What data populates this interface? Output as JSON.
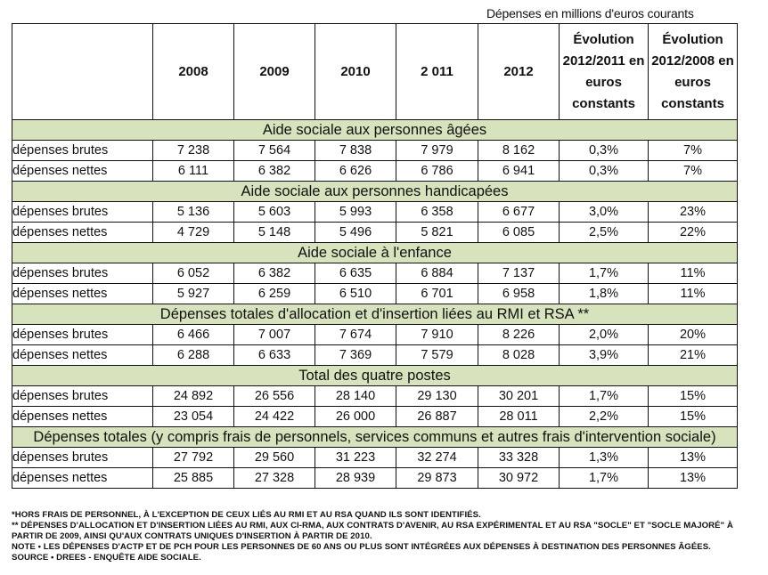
{
  "unit_note": "Dépenses en millions d'euros courants",
  "header": {
    "columns": [
      "",
      "2008",
      "2009",
      "2010",
      "2 011",
      "2012",
      "Évolution 2012/2011 en euros constants",
      "Évolution 2012/2008 en euros constants"
    ]
  },
  "sections": [
    {
      "title": "Aide sociale aux personnes âgées",
      "rows": [
        {
          "label": "dépenses brutes",
          "values": [
            "7 238",
            "7 564",
            "7 838",
            "7 979",
            "8 162",
            "0,3%",
            "7%"
          ]
        },
        {
          "label": "dépenses nettes",
          "values": [
            "6 111",
            "6 382",
            "6 626",
            "6 786",
            "6 941",
            "0,3%",
            "7%"
          ]
        }
      ]
    },
    {
      "title": "Aide sociale aux personnes handicapées",
      "rows": [
        {
          "label": "dépenses brutes",
          "values": [
            "5 136",
            "5 603",
            "5 993",
            "6 358",
            "6 677",
            "3,0%",
            "23%"
          ]
        },
        {
          "label": "dépenses nettes",
          "values": [
            "4 729",
            "5 148",
            "5 496",
            "5 821",
            "6 085",
            "2,5%",
            "22%"
          ]
        }
      ]
    },
    {
      "title": "Aide sociale à l'enfance",
      "rows": [
        {
          "label": "dépenses brutes",
          "values": [
            "6 052",
            "6 382",
            "6 635",
            "6 884",
            "7 137",
            "1,7%",
            "11%"
          ]
        },
        {
          "label": "dépenses nettes",
          "values": [
            "5 927",
            "6 259",
            "6 510",
            "6 701",
            "6 958",
            "1,8%",
            "11%"
          ]
        }
      ]
    },
    {
      "title": "Dépenses totales d'allocation et d'insertion liées au RMI et RSA **",
      "rows": [
        {
          "label": "dépenses brutes",
          "values": [
            "6 466",
            "7 007",
            "7 674",
            "7 910",
            "8 226",
            "2,0%",
            "20%"
          ]
        },
        {
          "label": "dépenses nettes",
          "values": [
            "6 288",
            "6 633",
            "7 369",
            "7 579",
            "8 028",
            "3,9%",
            "21%"
          ]
        }
      ]
    },
    {
      "title": "Total des quatre postes",
      "rows": [
        {
          "label": "dépenses brutes",
          "values": [
            "24 892",
            "26 556",
            "28 140",
            "29 130",
            "30 201",
            "1,7%",
            "15%"
          ]
        },
        {
          "label": "dépenses nettes",
          "values": [
            "23 054",
            "24 422",
            "26 000",
            "26 887",
            "28 011",
            "2,2%",
            "15%"
          ]
        }
      ]
    },
    {
      "title": "Dépenses totales (y compris frais de personnels, services communs et autres frais d'intervention sociale)",
      "rows": [
        {
          "label": "dépenses brutes",
          "values": [
            "27 792",
            "29 560",
            "31 223",
            "32 274",
            "33 328",
            "1,3%",
            "13%"
          ]
        },
        {
          "label": "dépenses nettes",
          "values": [
            "25 885",
            "27 328",
            "28 939",
            "29 873",
            "30 972",
            "1,7%",
            "13%"
          ]
        }
      ]
    }
  ],
  "notes": [
    "*Hors frais de personnel, à l'exception de ceux liés au RMI et au RSA quand ils sont identifiés.",
    "** Dépenses d'allocation et d'insertion liées au RMI, aux CI-RMA, aux contrats d'avenir, au RSA expérimental et au RSA \"socle\" et \"socle majoré\" à partir de 2009, ainsi qu'aux contrats uniques d'insertion à partir de 2010.",
    "Note • Les dépenses d'ACTP et de PCH pour les personnes de 60 ans ou plus sont intégrées aux dépenses à destination des personnes âgées.",
    "Source • DREES - Enquête Aide sociale."
  ]
}
